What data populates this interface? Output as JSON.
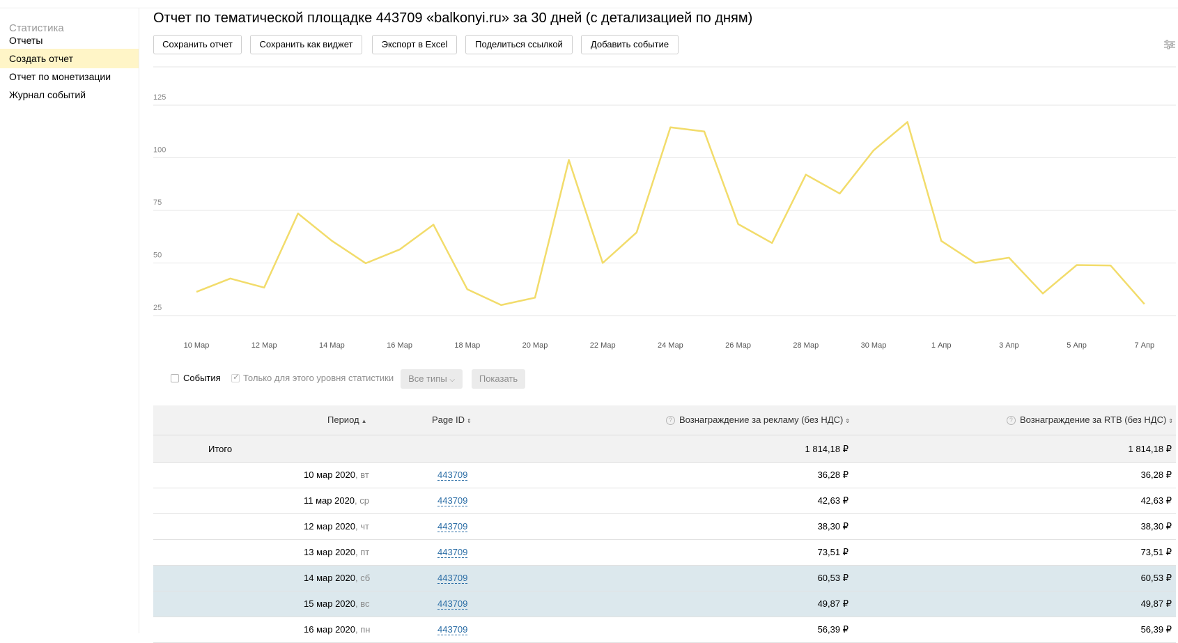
{
  "sidebar": {
    "title": "Статистика",
    "items": [
      {
        "label": "Отчеты",
        "active": false
      },
      {
        "label": "Создать отчет",
        "active": true
      },
      {
        "label": "Отчет по монетизации",
        "active": false
      },
      {
        "label": "Журнал событий",
        "active": false
      }
    ]
  },
  "header": {
    "title": "Отчет по тематической площадке 443709 «balkonyi.ru» за 30 дней (с детализацией по дням)"
  },
  "toolbar": {
    "save_report": "Сохранить отчет",
    "save_widget": "Сохранить как виджет",
    "export_excel": "Экспорт в Excel",
    "share_link": "Поделиться ссылкой",
    "add_event": "Добавить событие",
    "settings_icon": "sliders-icon"
  },
  "chart_data": {
    "type": "line",
    "title": "",
    "xlabel": "",
    "ylabel": "",
    "ylim": [
      0,
      125
    ],
    "yticks": [
      25,
      50,
      75,
      100,
      125
    ],
    "x_tick_labels": [
      "10 Мар",
      "12 Мар",
      "14 Мар",
      "16 Мар",
      "18 Мар",
      "20 Мар",
      "22 Мар",
      "24 Мар",
      "26 Мар",
      "28 Мар",
      "30 Мар",
      "1 Апр",
      "3 Апр",
      "5 Апр",
      "7 Апр"
    ],
    "x": [
      "10 мар 2020",
      "11 мар 2020",
      "12 мар 2020",
      "13 мар 2020",
      "14 мар 2020",
      "15 мар 2020",
      "16 мар 2020",
      "17 мар 2020",
      "18 мар 2020",
      "19 мар 2020",
      "20 мар 2020",
      "21 мар 2020",
      "22 мар 2020",
      "23 мар 2020",
      "24 мар 2020",
      "25 мар 2020",
      "26 мар 2020",
      "27 мар 2020",
      "28 мар 2020",
      "29 мар 2020",
      "30 мар 2020",
      "31 мар 2020",
      "1 апр 2020",
      "2 апр 2020",
      "3 апр 2020",
      "4 апр 2020",
      "5 апр 2020",
      "6 апр 2020",
      "7 апр 2020"
    ],
    "series": [
      {
        "color": "#f2dc6b",
        "values": [
          36.28,
          42.63,
          38.3,
          73.51,
          60.53,
          49.87,
          56.39,
          68.2,
          37.5,
          30.0,
          33.5,
          99.0,
          50.0,
          64.5,
          114.5,
          112.5,
          68.5,
          59.5,
          92.0,
          83.0,
          103.5,
          117.0,
          60.5,
          50.0,
          52.5,
          35.5,
          49.0,
          48.8,
          30.5
        ]
      }
    ],
    "grid": true
  },
  "controls": {
    "events_label": "События",
    "only_level_label": "Только для этого уровня статистики",
    "types_label": "Все типы",
    "show_label": "Показать"
  },
  "table": {
    "columns": {
      "period": "Период",
      "page_id": "Page ID",
      "reward_ads": "Вознаграждение за рекламу (без НДС)",
      "reward_rtb": "Вознаграждение за RTB (без НДС)"
    },
    "total": {
      "label": "Итого",
      "reward_ads": "1 814,18 ₽",
      "reward_rtb": "1 814,18 ₽"
    },
    "rows": [
      {
        "date": "10 мар 2020",
        "weekday": ", вт",
        "page_id": "443709",
        "reward_ads": "36,28 ₽",
        "reward_rtb": "36,28 ₽"
      },
      {
        "date": "11 мар 2020",
        "weekday": ", ср",
        "page_id": "443709",
        "reward_ads": "42,63 ₽",
        "reward_rtb": "42,63 ₽"
      },
      {
        "date": "12 мар 2020",
        "weekday": ", чт",
        "page_id": "443709",
        "reward_ads": "38,30 ₽",
        "reward_rtb": "38,30 ₽"
      },
      {
        "date": "13 мар 2020",
        "weekday": ", пт",
        "page_id": "443709",
        "reward_ads": "73,51 ₽",
        "reward_rtb": "73,51 ₽"
      },
      {
        "date": "14 мар 2020",
        "weekday": ", сб",
        "page_id": "443709",
        "reward_ads": "60,53 ₽",
        "reward_rtb": "60,53 ₽"
      },
      {
        "date": "15 мар 2020",
        "weekday": ", вс",
        "page_id": "443709",
        "reward_ads": "49,87 ₽",
        "reward_rtb": "49,87 ₽"
      },
      {
        "date": "16 мар 2020",
        "weekday": ", пн",
        "page_id": "443709",
        "reward_ads": "56,39 ₽",
        "reward_rtb": "56,39 ₽"
      }
    ]
  }
}
